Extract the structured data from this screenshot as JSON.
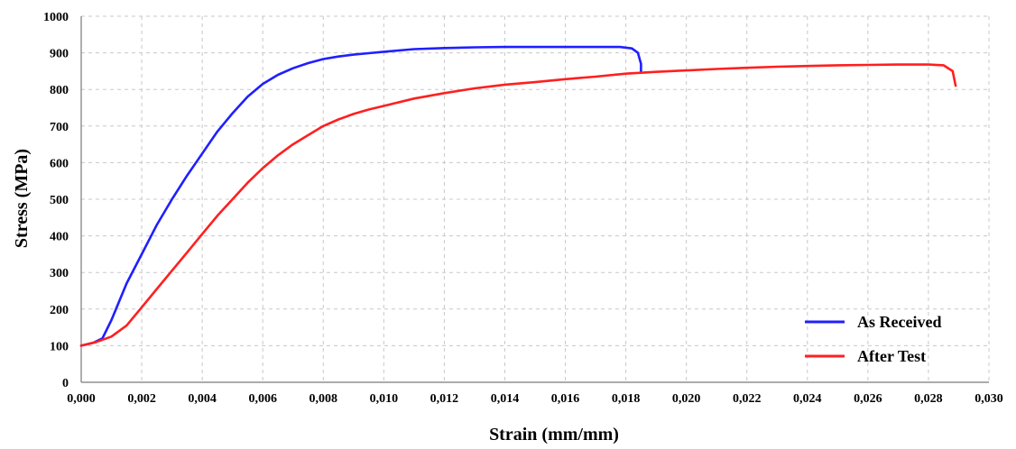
{
  "chart_data": {
    "type": "line",
    "xlabel": "Strain (mm/mm)",
    "ylabel": "Stress (MPa)",
    "xlim": [
      0,
      0.03
    ],
    "ylim": [
      0,
      1000
    ],
    "x_tick_labels": [
      "0,000",
      "0,002",
      "0,004",
      "0,006",
      "0,008",
      "0,010",
      "0,012",
      "0,014",
      "0,016",
      "0,018",
      "0,020",
      "0,022",
      "0,024",
      "0,026",
      "0,028",
      "0,030"
    ],
    "y_tick_labels": [
      "0",
      "100",
      "200",
      "300",
      "400",
      "500",
      "600",
      "700",
      "800",
      "900",
      "1000"
    ],
    "grid": true,
    "legend_position": "bottom-right",
    "series": [
      {
        "name": "As Received",
        "color": "#1f1fff",
        "x": [
          0.0,
          0.0004,
          0.0007,
          0.001,
          0.0015,
          0.002,
          0.0025,
          0.003,
          0.0035,
          0.004,
          0.0045,
          0.005,
          0.0055,
          0.006,
          0.0065,
          0.007,
          0.0075,
          0.008,
          0.0085,
          0.009,
          0.0095,
          0.01,
          0.011,
          0.012,
          0.013,
          0.014,
          0.015,
          0.016,
          0.017,
          0.0178,
          0.0182,
          0.0184,
          0.0185,
          0.0185
        ],
        "y": [
          100,
          108,
          120,
          170,
          270,
          350,
          430,
          500,
          565,
          625,
          685,
          735,
          780,
          815,
          840,
          858,
          872,
          883,
          890,
          895,
          899,
          903,
          910,
          913,
          915,
          916,
          916,
          916,
          916,
          916,
          912,
          900,
          870,
          850
        ]
      },
      {
        "name": "After Test",
        "color": "#ff1f1f",
        "x": [
          0.0,
          0.0005,
          0.001,
          0.0015,
          0.002,
          0.0025,
          0.003,
          0.0035,
          0.004,
          0.0045,
          0.005,
          0.0055,
          0.006,
          0.0065,
          0.007,
          0.0075,
          0.008,
          0.0085,
          0.009,
          0.0095,
          0.01,
          0.011,
          0.012,
          0.013,
          0.014,
          0.015,
          0.016,
          0.017,
          0.018,
          0.019,
          0.02,
          0.021,
          0.022,
          0.023,
          0.024,
          0.025,
          0.026,
          0.027,
          0.028,
          0.0285,
          0.0288,
          0.0289
        ],
        "y": [
          100,
          110,
          125,
          155,
          205,
          255,
          305,
          355,
          405,
          455,
          500,
          545,
          585,
          620,
          650,
          675,
          700,
          718,
          733,
          745,
          755,
          775,
          790,
          803,
          813,
          820,
          828,
          835,
          843,
          848,
          852,
          856,
          859,
          862,
          864,
          866,
          867,
          868,
          868,
          866,
          850,
          810
        ]
      }
    ]
  }
}
